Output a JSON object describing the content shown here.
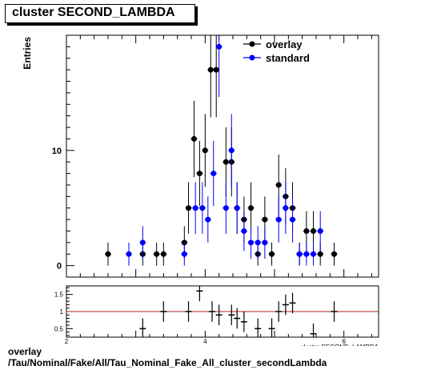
{
  "title": "cluster SECOND_LAMBDA",
  "footer_line1": "overlay",
  "footer_line2": "/Tau/Nominal/Fake/All/Tau_Nominal_Fake_All_cluster_secondLambda",
  "chart_data": [
    {
      "type": "scatter",
      "role": "main",
      "ylabel": "Entries",
      "xlabel": "",
      "xlim": [
        2.0,
        6.5
      ],
      "ylim": [
        -1,
        20
      ],
      "yticks": [
        0,
        10
      ],
      "grid": false,
      "legend_position": "top-right",
      "series": [
        {
          "name": "overlay",
          "color": "#000000",
          "marker": "circle",
          "points": [
            [
              2.6,
              1
            ],
            [
              3.1,
              1
            ],
            [
              3.3,
              1
            ],
            [
              3.4,
              1
            ],
            [
              3.7,
              2
            ],
            [
              3.76,
              5
            ],
            [
              3.84,
              11
            ],
            [
              3.92,
              8
            ],
            [
              4.0,
              10
            ],
            [
              4.08,
              17
            ],
            [
              4.16,
              17
            ],
            [
              4.3,
              9
            ],
            [
              4.38,
              9
            ],
            [
              4.46,
              5
            ],
            [
              4.56,
              4
            ],
            [
              4.66,
              5
            ],
            [
              4.76,
              1
            ],
            [
              4.86,
              4
            ],
            [
              4.96,
              1
            ],
            [
              5.06,
              7
            ],
            [
              5.16,
              6
            ],
            [
              5.26,
              5
            ],
            [
              5.36,
              1
            ],
            [
              5.46,
              3
            ],
            [
              5.56,
              3
            ],
            [
              5.66,
              1
            ],
            [
              5.86,
              1
            ]
          ]
        },
        {
          "name": "standard",
          "color": "#0000ff",
          "marker": "circle",
          "points": [
            [
              2.9,
              1
            ],
            [
              3.1,
              2
            ],
            [
              3.7,
              1
            ],
            [
              3.86,
              5
            ],
            [
              3.96,
              5
            ],
            [
              4.04,
              4
            ],
            [
              4.12,
              8
            ],
            [
              4.2,
              19
            ],
            [
              4.3,
              5
            ],
            [
              4.38,
              10
            ],
            [
              4.46,
              5
            ],
            [
              4.56,
              3
            ],
            [
              4.66,
              2
            ],
            [
              4.76,
              2
            ],
            [
              4.86,
              2
            ],
            [
              5.06,
              4
            ],
            [
              5.16,
              5
            ],
            [
              5.26,
              4
            ],
            [
              5.36,
              1
            ],
            [
              5.46,
              1
            ],
            [
              5.56,
              1
            ],
            [
              5.66,
              3
            ]
          ]
        }
      ]
    },
    {
      "type": "scatter",
      "role": "ratio",
      "xlabel": "cluster SECOND_LAMBDA",
      "xlim": [
        2.0,
        6.5
      ],
      "ylim": [
        0.25,
        1.75
      ],
      "yticks": [
        "0.5",
        "1",
        "1.5"
      ],
      "xticks": [
        "2",
        "4",
        "6"
      ],
      "reference_line": 1.0,
      "reference_color": "#b22222",
      "points": [
        [
          3.1,
          0.5
        ],
        [
          3.4,
          1.0
        ],
        [
          3.76,
          1.0
        ],
        [
          3.92,
          1.6
        ],
        [
          4.1,
          1.0
        ],
        [
          4.2,
          0.9
        ],
        [
          4.38,
          0.9
        ],
        [
          4.46,
          0.8
        ],
        [
          4.56,
          0.7
        ],
        [
          4.76,
          0.5
        ],
        [
          4.96,
          0.5
        ],
        [
          5.06,
          1.0
        ],
        [
          5.16,
          1.2
        ],
        [
          5.26,
          1.25
        ],
        [
          5.56,
          0.35
        ],
        [
          5.86,
          1.0
        ]
      ]
    }
  ]
}
